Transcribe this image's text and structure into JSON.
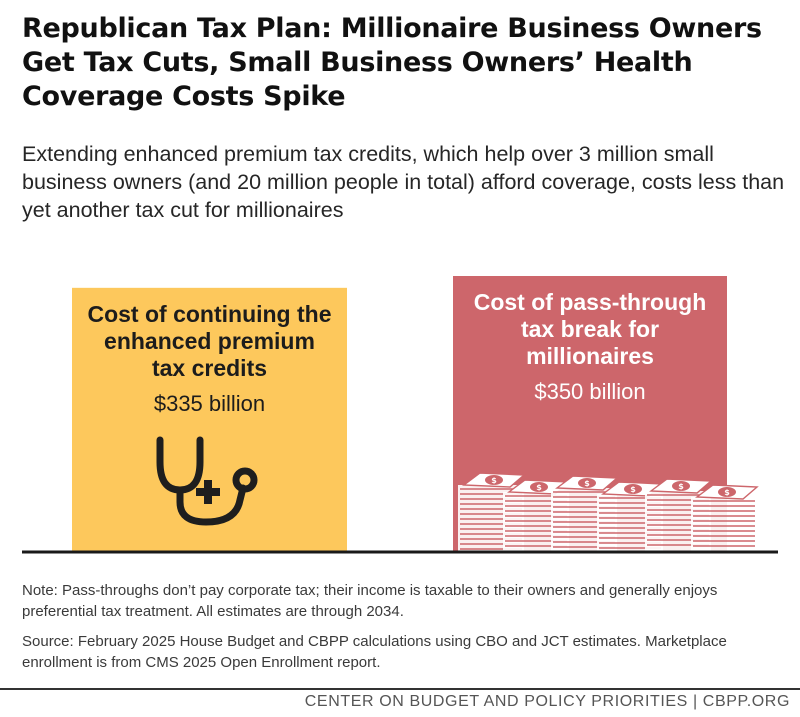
{
  "title": "Republican Tax Plan: Millionaire Business Owners Get Tax Cuts, Small Business Owners’ Health Coverage Costs Spike",
  "subtitle": "Extending enhanced premium tax credits, which help over 3 million small business owners (and 20 million people in total) afford coverage, costs less than yet another tax cut for millionaires",
  "chart_data": {
    "type": "bar",
    "categories": [
      "Cost of continuing the enhanced premium tax credits",
      "Cost of pass-through tax break for millionaires"
    ],
    "values": [
      335,
      350
    ],
    "value_labels": [
      "$335 billion",
      "$350 billion"
    ],
    "label_lines": [
      [
        "Cost of continuing the",
        "enhanced premium",
        "tax credits"
      ],
      [
        "Cost of pass-through",
        "tax break for",
        "millionaires"
      ]
    ],
    "unit": "billion dollars",
    "colors": [
      "#fdc85c",
      "#cd666b"
    ],
    "label_colors": [
      "#1c1c1c",
      "#ffffff"
    ],
    "icons": [
      "stethoscope-icon",
      "money-stacks-icon"
    ],
    "ylim": [
      0,
      350
    ]
  },
  "note": "Note: Pass-throughs don’t pay corporate tax; their income is taxable to their owners and generally enjoys preferential tax treatment. All estimates are through 2034.",
  "source": "Source: February 2025 House Budget and CBPP calculations using CBO and JCT estimates. Marketplace enrollment is from CMS 2025 Open Enrollment report.",
  "footer": "CENTER ON BUDGET AND POLICY PRIORITIES | CBPP.ORG"
}
